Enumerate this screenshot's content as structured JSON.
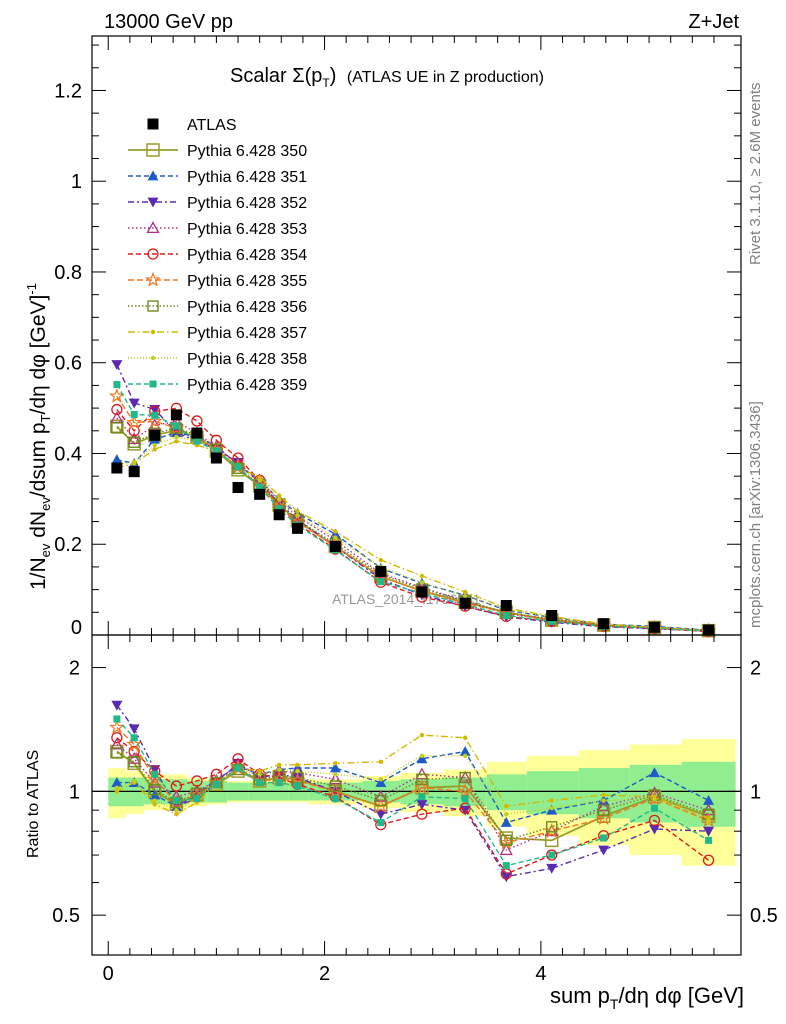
{
  "header": {
    "energy_label": "13000 GeV pp",
    "process_label": "Z+Jet",
    "plot_title_main": "Scalar Σ(p",
    "plot_title_sub": "T",
    "plot_title_close": ")",
    "plot_title_rest": "(ATLAS UE in Z production)",
    "watermark": "ATLAS_2014_I1736531"
  },
  "side_labels": {
    "rivet": "Rivet 3.1.10, ≥ 2.6M events",
    "mcplots": "mcplots.cern.ch [arXiv:1306.3436]"
  },
  "axes": {
    "main_ylabel": "1/N_ev dN_ev/dsum p_T/dη dφ  [GeV]^-1",
    "ratio_ylabel": "Ratio to ATLAS",
    "xlabel": "sum p_T/dη dφ [GeV]",
    "main_yticks": [
      "0",
      "0.2",
      "0.4",
      "0.6",
      "0.8",
      "1",
      "1.2"
    ],
    "ratio_yticks": [
      "0.5",
      "1",
      "2"
    ],
    "xticks": [
      "0",
      "2",
      "4"
    ]
  },
  "colors": {
    "data": "#000000",
    "band_inner": "#90ee90",
    "band_outer": "#ffff99"
  },
  "chart_data": {
    "type": "line",
    "xlim": [
      -0.15,
      5.85
    ],
    "ylim_main": [
      0,
      1.32
    ],
    "ylim_ratio": [
      0.4,
      2.4
    ],
    "x": [
      0.08,
      0.24,
      0.43,
      0.63,
      0.82,
      1.0,
      1.2,
      1.4,
      1.58,
      1.75,
      2.1,
      2.52,
      2.9,
      3.3,
      3.68,
      4.1,
      4.58,
      5.05,
      5.55
    ],
    "atlas": [
      0.368,
      0.36,
      0.44,
      0.485,
      0.445,
      0.39,
      0.325,
      0.31,
      0.265,
      0.235,
      0.195,
      0.14,
      0.095,
      0.07,
      0.065,
      0.043,
      0.025,
      0.017,
      0.011
    ],
    "band_edges": [
      0.0,
      0.16,
      0.33,
      0.53,
      0.73,
      0.92,
      1.1,
      1.3,
      1.5,
      1.67,
      1.85,
      2.35,
      2.7,
      3.1,
      3.5,
      3.87,
      4.35,
      4.82,
      5.3,
      5.8
    ],
    "band_inner": [
      0.08,
      0.08,
      0.07,
      0.07,
      0.06,
      0.06,
      0.05,
      0.05,
      0.05,
      0.05,
      0.05,
      0.06,
      0.07,
      0.08,
      0.1,
      0.12,
      0.14,
      0.16,
      0.18
    ],
    "band_outer": [
      0.14,
      0.12,
      0.1,
      0.1,
      0.08,
      0.07,
      0.06,
      0.06,
      0.06,
      0.06,
      0.07,
      0.09,
      0.11,
      0.13,
      0.18,
      0.22,
      0.26,
      0.3,
      0.34
    ],
    "series": [
      {
        "name": "Pythia 6.428 350",
        "color": "#9b9b2a",
        "marker": "square-open",
        "dash": "solid",
        "width": 1.8,
        "ratio": [
          1.25,
          1.17,
          1.0,
          0.93,
          0.98,
          1.04,
          1.12,
          1.06,
          1.08,
          1.07,
          1.0,
          0.92,
          1.02,
          1.03,
          0.77,
          0.76,
          0.87,
          0.97,
          0.87
        ]
      },
      {
        "name": "Pythia 6.428 351",
        "color": "#1e5bc6",
        "marker": "tri-up",
        "dash": "5,3",
        "width": 1.4,
        "ratio": [
          1.05,
          1.05,
          0.98,
          0.92,
          0.98,
          1.07,
          1.15,
          1.1,
          1.13,
          1.14,
          1.14,
          1.05,
          1.2,
          1.25,
          0.84,
          0.9,
          0.95,
          1.11,
          0.95
        ]
      },
      {
        "name": "Pythia 6.428 352",
        "color": "#5a2bb0",
        "marker": "tri-down",
        "dash": "6,3,2,3",
        "width": 1.4,
        "ratio": [
          1.62,
          1.42,
          1.13,
          0.92,
          0.96,
          1.05,
          1.17,
          1.08,
          1.1,
          1.08,
          1.0,
          0.88,
          0.93,
          0.9,
          0.62,
          0.65,
          0.72,
          0.81,
          0.8
        ]
      },
      {
        "name": "Pythia 6.428 353",
        "color": "#b03090",
        "marker": "tri-up-open",
        "dash": "1.5,2.5",
        "width": 1.4,
        "ratio": [
          1.3,
          1.2,
          1.05,
          0.97,
          1.0,
          1.06,
          1.16,
          1.1,
          1.12,
          1.11,
          1.07,
          0.97,
          1.1,
          1.08,
          0.72,
          0.8,
          0.92,
          0.99,
          0.9
        ]
      },
      {
        "name": "Pythia 6.428 354",
        "color": "#dd1c1c",
        "marker": "circle-open",
        "dash": "5,3",
        "width": 1.4,
        "ratio": [
          1.35,
          1.25,
          1.12,
          1.03,
          1.06,
          1.1,
          1.2,
          1.1,
          1.08,
          1.04,
          0.97,
          0.83,
          0.88,
          0.91,
          0.63,
          0.7,
          0.78,
          0.85,
          0.68
        ]
      },
      {
        "name": "Pythia 6.428 355",
        "color": "#f07820",
        "marker": "star-open",
        "dash": "6,3",
        "width": 1.4,
        "ratio": [
          1.43,
          1.3,
          1.07,
          0.94,
          0.98,
          1.05,
          1.14,
          1.06,
          1.07,
          1.06,
          1.0,
          0.92,
          1.02,
          1.0,
          0.75,
          0.8,
          0.86,
          0.96,
          0.85
        ]
      },
      {
        "name": "Pythia 6.428 356",
        "color": "#6f8b1e",
        "marker": "square-open-sm",
        "dash": "1.5,2",
        "width": 1.4,
        "ratio": [
          1.24,
          1.18,
          1.01,
          0.94,
          0.99,
          1.05,
          1.13,
          1.07,
          1.09,
          1.08,
          1.03,
          0.95,
          1.07,
          1.08,
          0.76,
          0.82,
          0.9,
          0.98,
          0.88
        ]
      },
      {
        "name": "Pythia 6.428 357",
        "color": "#d4b800",
        "marker": "dot",
        "dash": "7,3,1.5,3",
        "width": 1.4,
        "ratio": [
          1.0,
          1.05,
          0.93,
          0.88,
          0.94,
          1.04,
          1.14,
          1.12,
          1.16,
          1.16,
          1.17,
          1.18,
          1.37,
          1.35,
          0.92,
          0.95,
          0.98,
          0.97,
          0.86
        ]
      },
      {
        "name": "Pythia 6.428 358",
        "color": "#c6cc1e",
        "marker": "dot",
        "dash": "1,2",
        "width": 1.4,
        "ratio": [
          1.02,
          1.06,
          0.95,
          0.9,
          0.96,
          1.05,
          1.13,
          1.1,
          1.13,
          1.12,
          1.1,
          1.07,
          1.22,
          1.22,
          0.88,
          0.91,
          0.95,
          0.96,
          0.84
        ]
      },
      {
        "name": "Pythia 6.428 359",
        "color": "#22b88a",
        "marker": "square-sm",
        "dash": "5,3",
        "width": 1.4,
        "ratio": [
          1.5,
          1.35,
          1.1,
          0.95,
          0.96,
          1.04,
          1.14,
          1.05,
          1.05,
          1.03,
          0.96,
          0.84,
          0.97,
          0.96,
          0.66,
          0.7,
          0.77,
          0.91,
          0.76
        ]
      }
    ]
  }
}
